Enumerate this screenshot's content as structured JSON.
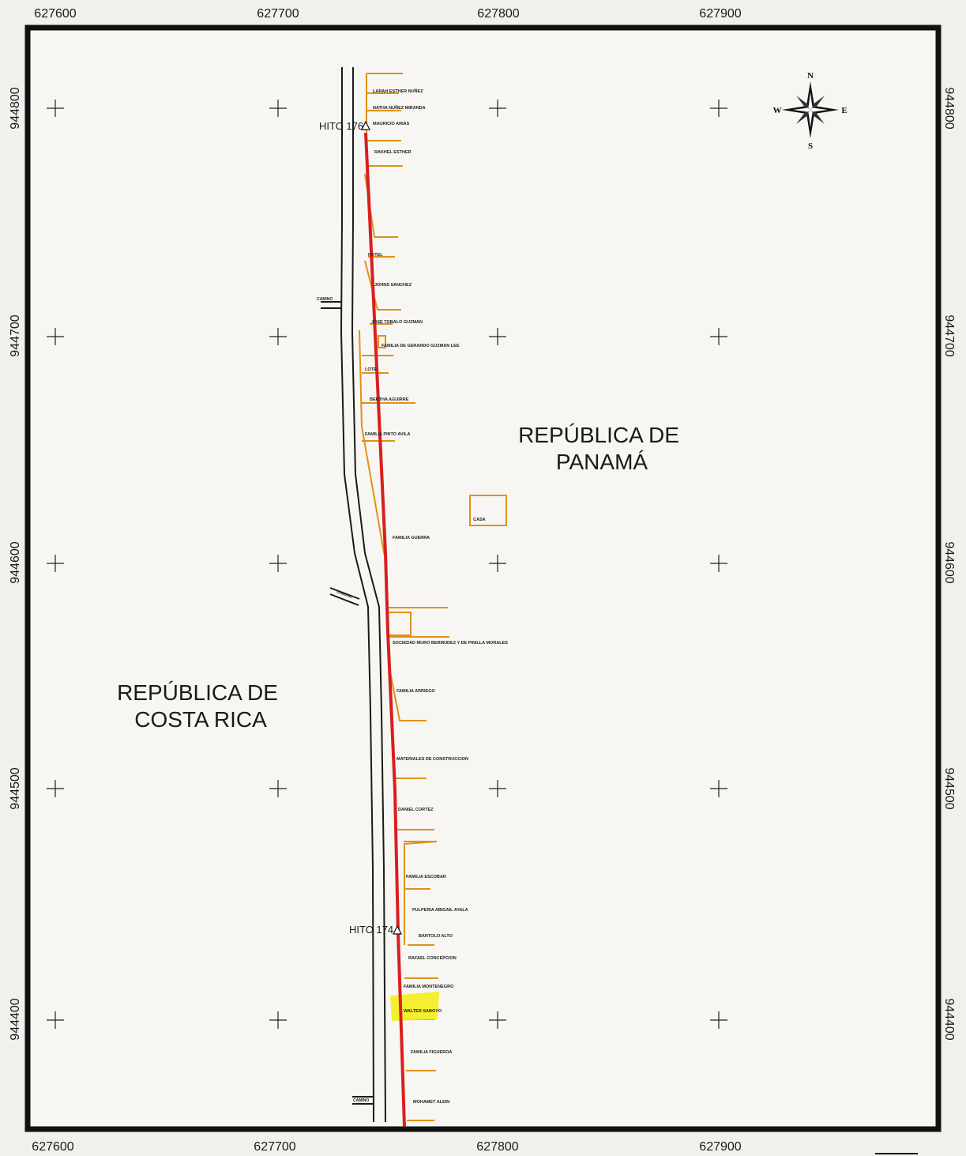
{
  "map": {
    "x_ticks_top": [
      "627600",
      "627700",
      "627800",
      "627900"
    ],
    "x_ticks_bottom": [
      "627600",
      "627700",
      "627800",
      "627900"
    ],
    "y_ticks_left": [
      "944800",
      "944700",
      "944600",
      "944500",
      "944400"
    ],
    "y_ticks_right": [
      "944800",
      "944700",
      "944600",
      "944500",
      "944400"
    ],
    "regions": {
      "panama_line1": "REPÚBLICA DE",
      "panama_line2": "PANAMÁ",
      "costa_rica_line1": "REPÚBLICA DE",
      "costa_rica_line2": "COSTA RICA"
    },
    "hitos": [
      "HITO 176",
      "HITO 174"
    ],
    "caminos": [
      "CAMINO",
      "CAMINO",
      "CAMINO"
    ],
    "casa_label": "CASA",
    "parcels": [
      "LARAH ESTHER NUÑEZ",
      "NATHA NUÑEZ MIRANDA",
      "MAURICIO ARIAS",
      "RAKHEL ESTHER",
      "HOTEL",
      "JOHNS SANCHEZ",
      "JOSE TOBALO GUZMAN",
      "FAMILIA DE GERARDO GUZMAN LEE",
      "LOTE",
      "BERTHA AGUIRRE",
      "FAMILIA PINTO AVILA",
      "FAMILIA GUERRA",
      "SOCIEDAD MURO BERMUDEZ Y DE PINILLA MORALES",
      "FAMILIA ARRIEGO",
      "MATERIALES DE CONSTRUCCION",
      "DANIEL CORTEZ",
      "FAMILIA ESCOBAR",
      "PULPERIA ABIGAIL AYALA",
      "BARTOLO ALTO",
      "RAFAEL CONCEPCION",
      "FAMILIA MONTENEGRO",
      "WALTER SABOYO",
      "FAMILIA FIGUEROA",
      "MOHAMET ALEIN"
    ],
    "compass": {
      "n": "N",
      "s": "S",
      "e": "E",
      "w": "W"
    },
    "colors": {
      "frame": "#111111",
      "border_line": "#d81f1f",
      "road": "#1a1a1a",
      "parcels": "#e0901a",
      "highlight": "#f3f01c",
      "paper": "#f2f0ec"
    }
  }
}
